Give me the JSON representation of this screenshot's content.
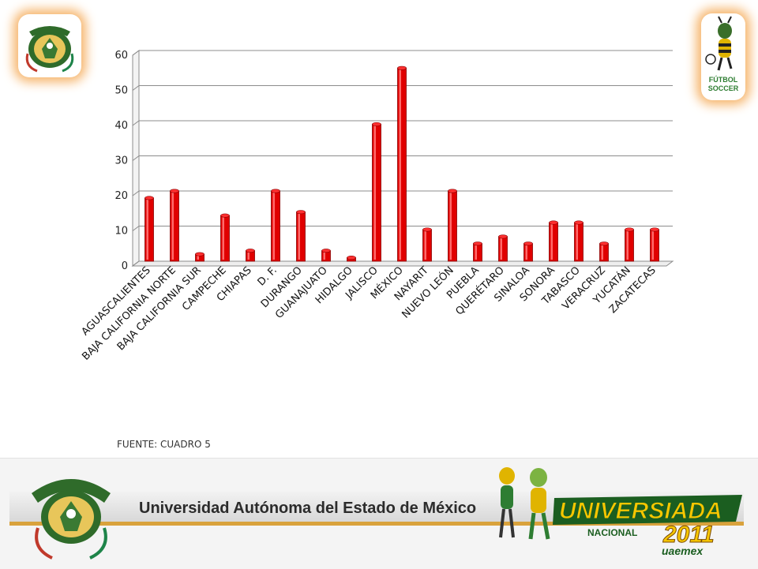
{
  "footer": {
    "university": "Universidad Autónoma del Estado de México",
    "event_word": "UNIVERSIADA",
    "event_sub": "NACIONAL",
    "event_year": "2011",
    "event_host": "uaemex"
  },
  "badge": {
    "line1": "FÚTBOL",
    "line2": "SOCCER"
  },
  "source_note": "FUENTE: CUADRO 5",
  "colors": {
    "bar": "#e00000",
    "bar_dark": "#8a0000",
    "gridline": "#8c8c8c",
    "footer_accent": "#d9a23c",
    "logo_glow": "#f6b46a"
  },
  "chart_data": {
    "type": "bar",
    "title": "",
    "xlabel": "",
    "ylabel": "",
    "ylim": [
      0,
      60
    ],
    "yticks": [
      0,
      10,
      20,
      30,
      40,
      50,
      60
    ],
    "grid": true,
    "legend": "none",
    "categories": [
      "AGUASCALIENTES",
      "BAJA CALIFORNIA NORTE",
      "BAJA CALIFORNIA SUR",
      "CAMPECHE",
      "CHIAPAS",
      "D. F.",
      "DURANGO",
      "GUANAJUATO",
      "HIDALGO",
      "JALISCO",
      "MÉXICO",
      "NAYARIT",
      "NUEVO LEÓN",
      "PUEBLA",
      "QUERÉTARO",
      "SINALOA",
      "SONORA",
      "TABASCO",
      "VERACRUZ",
      "YUCATÁN",
      "ZACATECAS"
    ],
    "values": [
      18,
      20,
      2,
      13,
      3,
      20,
      14,
      3,
      1,
      39,
      55,
      9,
      20,
      5,
      7,
      5,
      11,
      11,
      5,
      9,
      9
    ]
  }
}
